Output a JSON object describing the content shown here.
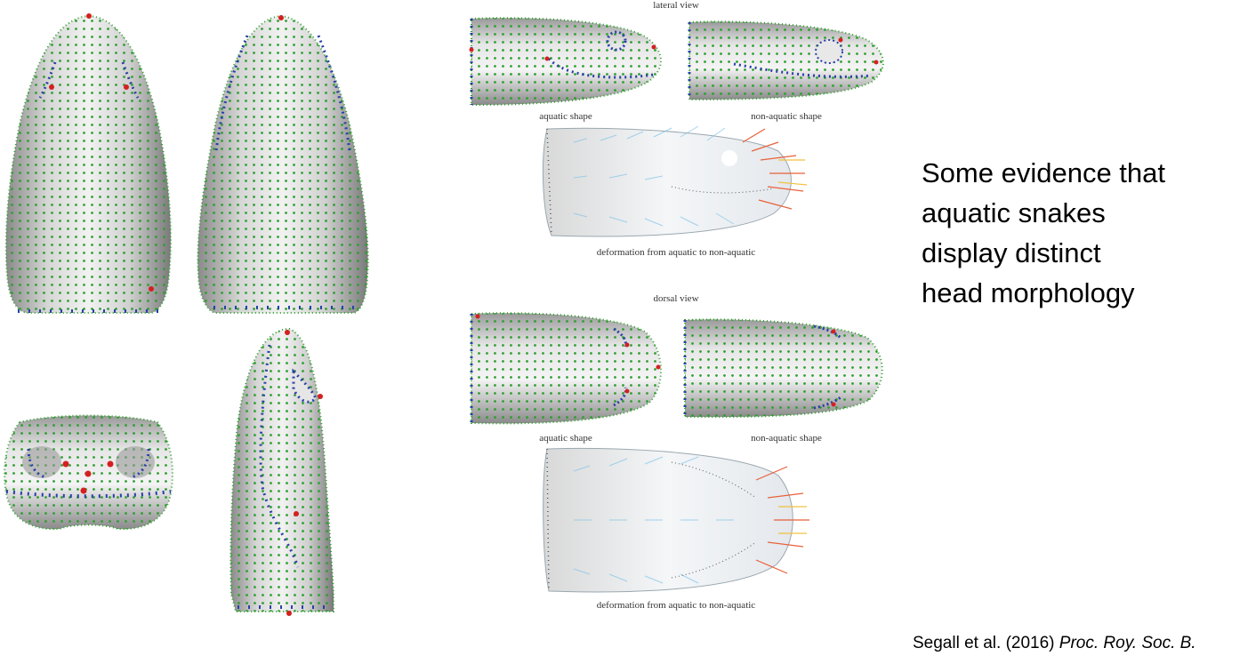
{
  "slide": {
    "headline_lines": [
      "Some evidence that",
      "aquatic snakes",
      "display distinct",
      "head morphology"
    ],
    "citation_authors": "Segall et al. (2016)",
    "citation_journal": "Proc. Roy. Soc. B."
  },
  "figure": {
    "lateral_title": "lateral view",
    "dorsal_title": "dorsal view",
    "aquatic_label_1": "aquatic shape",
    "nonaquatic_label_1": "non-aquatic shape",
    "deformation_label_1": "deformation from aquatic to non-aquatic",
    "aquatic_label_2": "aquatic shape",
    "nonaquatic_label_2": "non-aquatic shape",
    "deformation_label_2": "deformation from aquatic to non-aquatic"
  },
  "colors": {
    "surface": "#c8c8c8",
    "landmark_green": "#2f9e2f",
    "landmark_blue": "#2a3fa8",
    "landmark_red": "#d42020",
    "arrow_cool": "#7fc4e8",
    "arrow_warm": "#e8603a"
  }
}
